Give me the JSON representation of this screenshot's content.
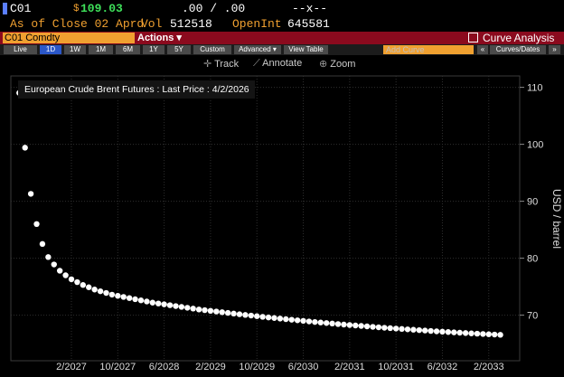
{
  "header": {
    "ticker": "C01",
    "currency_symbol": "$",
    "last_price": "109.03",
    "change": ".00 / .00",
    "separator": "--x--",
    "as_of": "As of Close 02 Aprd",
    "vol_label": "Vol",
    "vol_value": "512518",
    "openint_label": "OpenInt",
    "openint_value": "645581"
  },
  "security_bar": {
    "security": "C01 Comdty",
    "actions_label": "Actions ▾",
    "title": "Curve Analysis"
  },
  "buttons": {
    "live": "Live",
    "d1": "1D",
    "w1": "1W",
    "m1": "1M",
    "m6": "6M",
    "y1": "1Y",
    "y5": "5Y",
    "custom": "Custom",
    "advanced": "Advanced ▾",
    "view_table": "View Table",
    "add_curve": "Add Curve",
    "collapse": "«",
    "curves_dates": "Curves/Dates",
    "expand": "»"
  },
  "toolbar": {
    "track": "Track",
    "annotate": "Annotate",
    "zoom": "Zoom"
  },
  "colors": {
    "accent_orange": "#f0a030",
    "bar_red": "#8b0a1e",
    "price_green": "#3ee05a",
    "active_blue": "#2b57c8"
  },
  "chart_data": {
    "type": "scatter",
    "title": "European Crude Brent Futures : Last Price : 4/2/2026",
    "ylabel": "USD / barrel",
    "ylim": [
      62,
      112
    ],
    "yticks": [
      70,
      80,
      90,
      100,
      110
    ],
    "xticks": [
      "2/2027",
      "10/2027",
      "6/2028",
      "2/2029",
      "10/2029",
      "6/2030",
      "2/2031",
      "10/2031",
      "6/2032",
      "2/2033"
    ],
    "grid": true,
    "series": [
      {
        "x": [
          "5/2026",
          "6/2026",
          "7/2026",
          "8/2026",
          "9/2026",
          "10/2026",
          "11/2026",
          "12/2026",
          "1/2027",
          "2/2027",
          "3/2027",
          "4/2027",
          "5/2027",
          "6/2027",
          "7/2027",
          "8/2027",
          "9/2027",
          "10/2027",
          "11/2027",
          "12/2027",
          "1/2028",
          "2/2028",
          "3/2028",
          "4/2028",
          "5/2028",
          "6/2028",
          "7/2028",
          "8/2028",
          "9/2028",
          "10/2028",
          "11/2028",
          "12/2028",
          "1/2029",
          "2/2029",
          "3/2029",
          "4/2029",
          "5/2029",
          "6/2029",
          "7/2029",
          "8/2029",
          "9/2029",
          "10/2029",
          "11/2029",
          "12/2029",
          "1/2030",
          "2/2030",
          "3/2030",
          "4/2030",
          "5/2030",
          "6/2030",
          "7/2030",
          "8/2030",
          "9/2030",
          "10/2030",
          "11/2030",
          "12/2030",
          "1/2031",
          "2/2031",
          "3/2031",
          "4/2031",
          "5/2031",
          "6/2031",
          "7/2031",
          "8/2031",
          "9/2031",
          "10/2031",
          "11/2031",
          "12/2031",
          "1/2032",
          "2/2032",
          "3/2032",
          "4/2032",
          "5/2032",
          "6/2032",
          "7/2032",
          "8/2032",
          "9/2032",
          "10/2032",
          "11/2032",
          "12/2032",
          "1/2033",
          "2/2033",
          "3/2033",
          "4/2033"
        ],
        "values": [
          109.03,
          99.4,
          91.3,
          86.0,
          82.5,
          80.2,
          78.9,
          77.8,
          77.0,
          76.3,
          75.8,
          75.3,
          74.9,
          74.5,
          74.2,
          73.9,
          73.6,
          73.4,
          73.2,
          73.0,
          72.8,
          72.6,
          72.4,
          72.2,
          72.05,
          71.9,
          71.75,
          71.6,
          71.45,
          71.3,
          71.15,
          71.0,
          70.88,
          70.76,
          70.64,
          70.52,
          70.4,
          70.28,
          70.16,
          70.04,
          69.93,
          69.82,
          69.71,
          69.6,
          69.5,
          69.4,
          69.3,
          69.2,
          69.1,
          69.0,
          68.9,
          68.8,
          68.71,
          68.62,
          68.53,
          68.44,
          68.35,
          68.27,
          68.19,
          68.11,
          68.03,
          67.95,
          67.87,
          67.79,
          67.72,
          67.65,
          67.58,
          67.51,
          67.44,
          67.37,
          67.3,
          67.23,
          67.16,
          67.1,
          67.04,
          66.98,
          66.92,
          66.86,
          66.8,
          66.75,
          66.7,
          66.65,
          66.6,
          66.55
        ]
      }
    ]
  }
}
